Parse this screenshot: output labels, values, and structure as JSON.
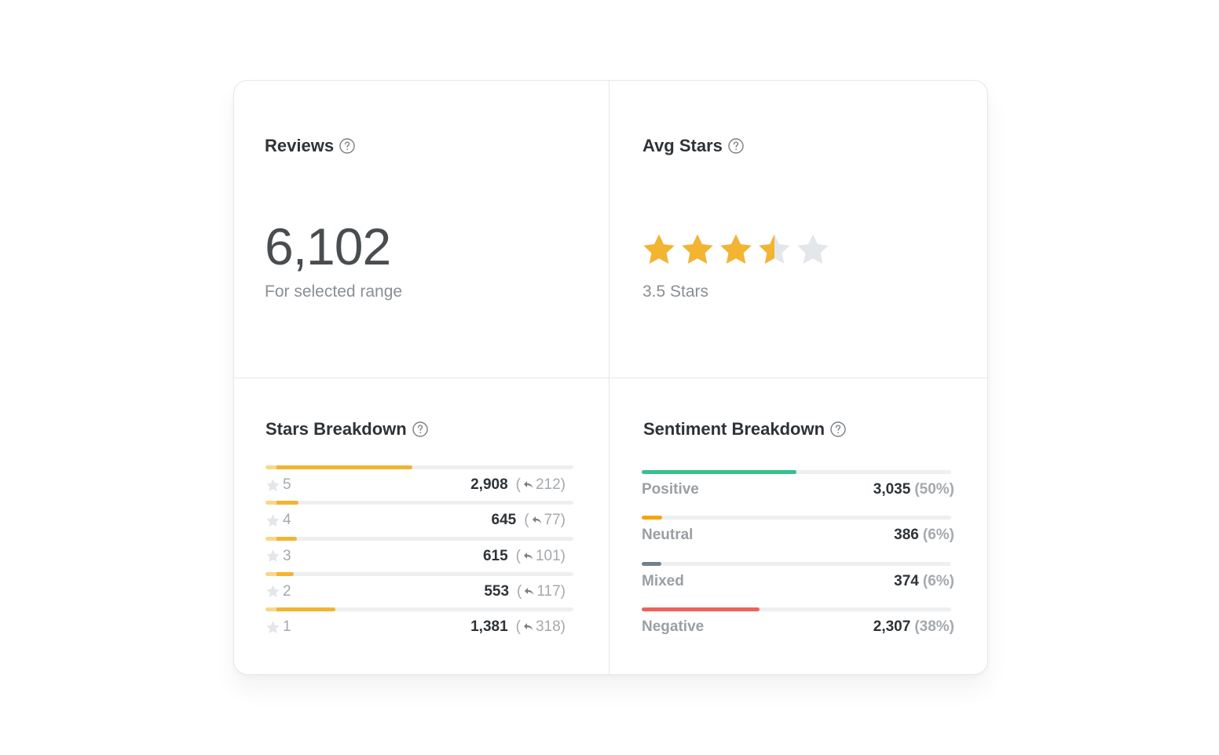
{
  "reviews": {
    "title": "Reviews",
    "value": "6,102",
    "subtext": "For selected range"
  },
  "avg_stars": {
    "title": "Avg Stars",
    "rating": 3.5,
    "max": 5,
    "subtext": "3.5 Stars"
  },
  "stars_breakdown": {
    "title": "Stars Breakdown",
    "rows": [
      {
        "star": "5",
        "count": "2,908",
        "replies": "212",
        "fraction": 0.477
      },
      {
        "star": "4",
        "count": "645",
        "replies": "77",
        "fraction": 0.106
      },
      {
        "star": "3",
        "count": "615",
        "replies": "101",
        "fraction": 0.101
      },
      {
        "star": "2",
        "count": "553",
        "replies": "117",
        "fraction": 0.091
      },
      {
        "star": "1",
        "count": "1,381",
        "replies": "318",
        "fraction": 0.226
      }
    ]
  },
  "sentiment_breakdown": {
    "title": "Sentiment Breakdown",
    "rows": [
      {
        "label": "Positive",
        "count": "3,035",
        "pct": "(50%)",
        "fraction": 0.5,
        "color": "#36c08e"
      },
      {
        "label": "Neutral",
        "count": "386",
        "pct": "(6%)",
        "fraction": 0.065,
        "color": "#f5a60e"
      },
      {
        "label": "Mixed",
        "count": "374",
        "pct": "(6%)",
        "fraction": 0.063,
        "color": "#6e8293"
      },
      {
        "label": "Negative",
        "count": "2,307",
        "pct": "(38%)",
        "fraction": 0.38,
        "color": "#f0615c"
      }
    ]
  },
  "colors": {
    "star_filled": "#f3b431",
    "star_empty": "#e3e6ea",
    "divider": "#e4e7ea"
  }
}
